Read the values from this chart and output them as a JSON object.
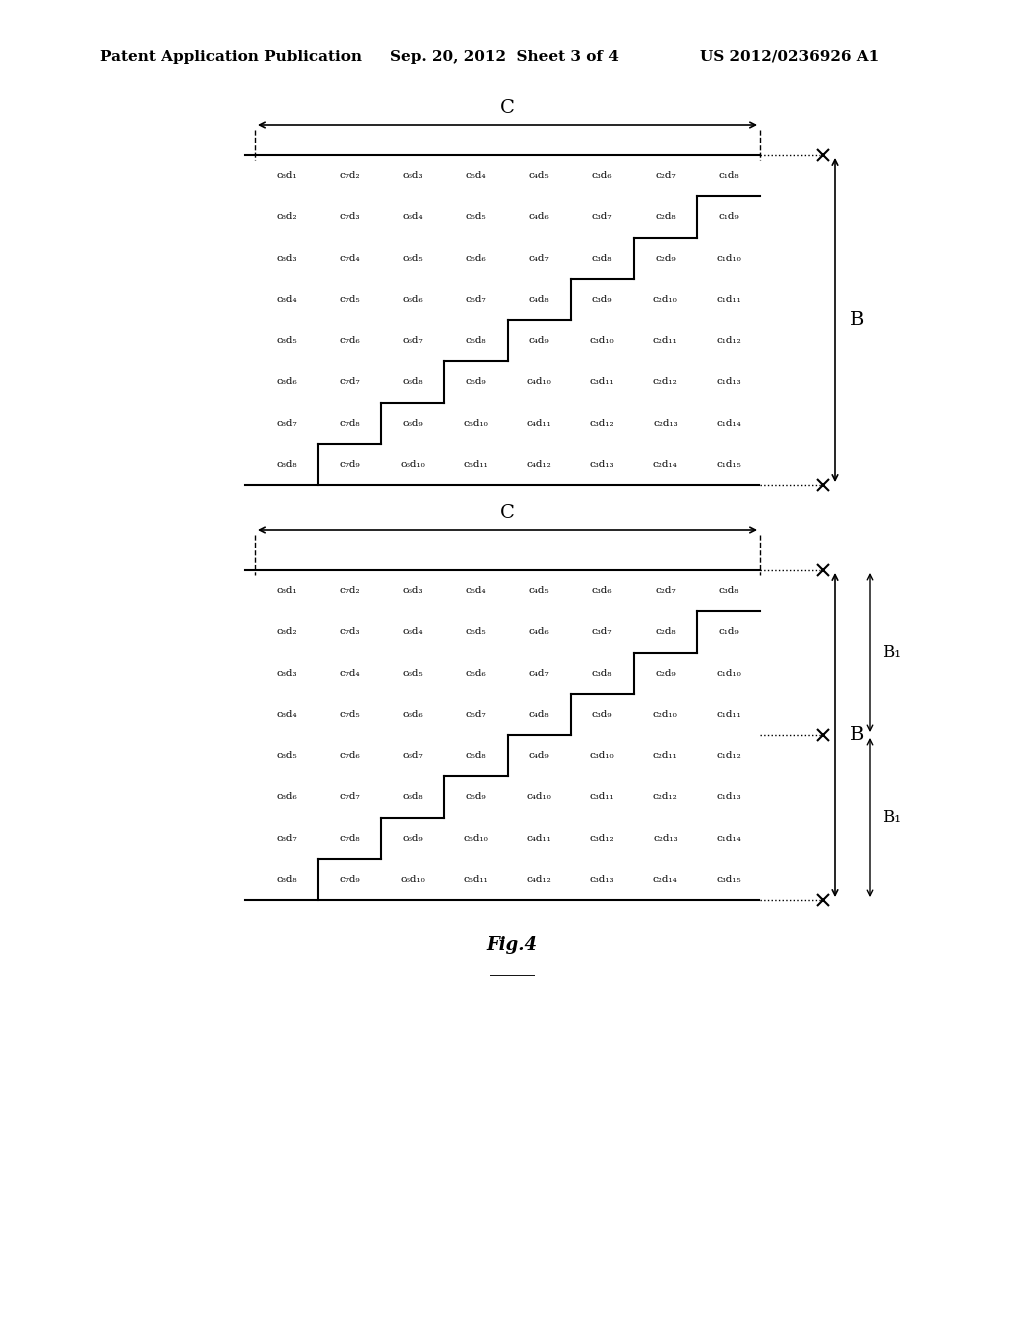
{
  "bg_color": "#ffffff",
  "header_text": "Patent Application Publication",
  "header_date": "Sep. 20, 2012  Sheet 3 of 4",
  "header_patent": "US 2012/0236926 A1",
  "fig_label": "Fig.4",
  "diagram1": {
    "title_C": "C",
    "label_B": "B",
    "rows": 8,
    "cols": 8,
    "cells": [
      [
        "c₈d₁",
        "c₇d₂",
        "c₆d₃",
        "c₅d₄",
        "c₄d₅",
        "c₃d₆",
        "c₂d₇",
        "c₁d₈"
      ],
      [
        "c₈d₂",
        "c₇d₃",
        "c₆d₄",
        "c₅d₅",
        "c₄d₆",
        "c₃d₇",
        "c₂d₈",
        "c₁d₉"
      ],
      [
        "c₈d₃",
        "c₇d₄",
        "c₆d₅",
        "c₅d₆",
        "c₄d₇",
        "c₃d₈",
        "c₂d₉",
        "c₁d₁₀"
      ],
      [
        "c₈d₄",
        "c₇d₅",
        "c₆d₆",
        "c₅d₇",
        "c₄d₈",
        "c₃d₉",
        "c₂d₁₀",
        "c₁d₁₁"
      ],
      [
        "c₈d₅",
        "c₇d₆",
        "c₆d₇",
        "c₅d₈",
        "c₄d₉",
        "c₃d₁₀",
        "c₂d₁₁",
        "c₁d₁₂"
      ],
      [
        "c₈d₆",
        "c₇d₇",
        "c₆d₈",
        "c₅d₉",
        "c₄d₁₀",
        "c₃d₁₁",
        "c₂d₁₂",
        "c₁d₁₃"
      ],
      [
        "c₈d₇",
        "c₇d₈",
        "c₆d₉",
        "c₅d₁₀",
        "c₄d₁₁",
        "c₃d₁₂",
        "c₂d₁₃",
        "c₁d₁₄"
      ],
      [
        "c₈d₈",
        "c₇d₉",
        "c₆d₁₀",
        "c₅d₁₁",
        "c₄d₁₂",
        "c₃d₁₃",
        "c₂d₁₄",
        "c₁d₁₅"
      ]
    ]
  },
  "diagram2": {
    "title_C": "C",
    "label_B": "B",
    "label_B1": "B₁",
    "rows": 8,
    "cols": 8,
    "cells": [
      [
        "c₈d₁",
        "c₇d₂",
        "c₆d₃",
        "c₅d₄",
        "c₄d₅",
        "c₃d₆",
        "c₂d₇",
        "c₃d₈"
      ],
      [
        "c₈d₂",
        "c₇d₃",
        "c₆d₄",
        "c₅d₅",
        "c₄d₆",
        "c₃d₇",
        "c₂d₈",
        "c₁d₉"
      ],
      [
        "c₈d₃",
        "c₇d₄",
        "c₆d₅",
        "c₅d₆",
        "c₄d₇",
        "c₃d₈",
        "c₂d₉",
        "c₁d₁₀"
      ],
      [
        "c₈d₄",
        "c₇d₅",
        "c₆d₆",
        "c₅d₇",
        "c₄d₈",
        "c₃d₉",
        "c₂d₁₀",
        "c₁d₁₁"
      ],
      [
        "c₈d₅",
        "c₇d₆",
        "c₆d₇",
        "c₅d₈",
        "c₄d₉",
        "c₃d₁₀",
        "c₂d₁₁",
        "c₁d₁₂"
      ],
      [
        "c₈d₆",
        "c₇d₇",
        "c₆d₈",
        "c₅d₉",
        "c₄d₁₀",
        "c₃d₁₁",
        "c₂d₁₂",
        "c₁d₁₃"
      ],
      [
        "c₈d₇",
        "c₇d₈",
        "c₆d₉",
        "c₅d₁₀",
        "c₄d₁₁",
        "c₃d₁₂",
        "c₂d₁₃",
        "c₁d₁₄"
      ],
      [
        "c₈d₈",
        "c₇d₉",
        "c₆d₁₀",
        "c₅d₁₁",
        "c₄d₁₂",
        "c₃d₁₃",
        "c₂d₁₄",
        "c₃d₁₅"
      ]
    ]
  }
}
